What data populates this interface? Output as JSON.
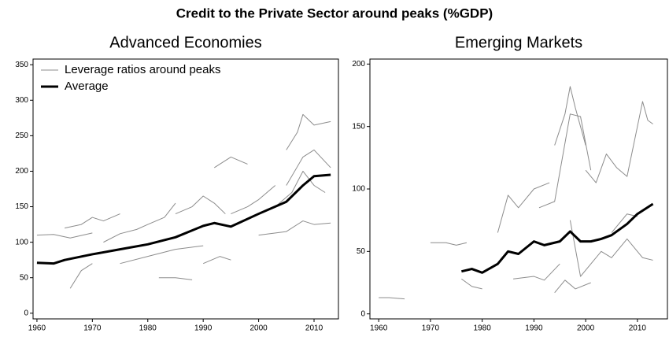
{
  "title": "Credit to the Private Sector around peaks (%GDP)",
  "chart_data": [
    {
      "type": "line",
      "title": "Advanced Economies",
      "xlim": [
        1959.3,
        2014.4
      ],
      "ylim": [
        -8,
        358
      ],
      "xticks": [
        1960,
        1970,
        1980,
        1990,
        2000,
        2010
      ],
      "yticks": [
        0,
        50,
        100,
        150,
        200,
        250,
        300,
        350
      ],
      "legend": "top-left",
      "series": [
        {
          "name": "Leverage ratios around peaks",
          "color": "#8c8c8c",
          "width": 1,
          "lines": [
            {
              "x": [
                1960,
                1963,
                1966,
                1970
              ],
              "values": [
                110,
                111,
                106,
                113
              ]
            },
            {
              "x": [
                1965,
                1968,
                1970,
                1972,
                1975
              ],
              "values": [
                120,
                125,
                135,
                130,
                140
              ]
            },
            {
              "x": [
                1966,
                1968,
                1970
              ],
              "values": [
                35,
                60,
                70
              ]
            },
            {
              "x": [
                1972,
                1975,
                1978,
                1980,
                1983,
                1985
              ],
              "values": [
                100,
                112,
                118,
                125,
                135,
                155
              ]
            },
            {
              "x": [
                1982,
                1985,
                1988
              ],
              "values": [
                50,
                50,
                47
              ]
            },
            {
              "x": [
                1985,
                1988,
                1990,
                1992,
                1994
              ],
              "values": [
                140,
                150,
                165,
                155,
                140
              ]
            },
            {
              "x": [
                1992,
                1995,
                1998
              ],
              "values": [
                205,
                220,
                210
              ]
            },
            {
              "x": [
                1990,
                1993,
                1995
              ],
              "values": [
                70,
                80,
                75
              ]
            },
            {
              "x": [
                1995,
                1998,
                2000,
                2003
              ],
              "values": [
                140,
                150,
                160,
                180
              ]
            },
            {
              "x": [
                2005,
                2007,
                2008,
                2010,
                2013
              ],
              "values": [
                230,
                255,
                280,
                265,
                270
              ]
            },
            {
              "x": [
                2005,
                2008,
                2010,
                2013
              ],
              "values": [
                180,
                220,
                230,
                205
              ]
            },
            {
              "x": [
                2000,
                2005,
                2008,
                2010,
                2013
              ],
              "values": [
                110,
                115,
                130,
                125,
                127
              ]
            },
            {
              "x": [
                1975,
                1980,
                1985,
                1990
              ],
              "values": [
                70,
                80,
                90,
                95
              ]
            },
            {
              "x": [
                2003,
                2006,
                2008,
                2010,
                2012
              ],
              "values": [
                150,
                170,
                200,
                180,
                170
              ]
            }
          ]
        },
        {
          "name": "Average",
          "color": "#000000",
          "width": 3,
          "lines": [
            {
              "x": [
                1960,
                1963,
                1965,
                1970,
                1975,
                1980,
                1985,
                1990,
                1992,
                1995,
                2000,
                2005,
                2008,
                2010,
                2013
              ],
              "values": [
                71,
                70,
                75,
                83,
                90,
                97,
                107,
                123,
                127,
                122,
                140,
                157,
                180,
                193,
                195
              ]
            }
          ]
        }
      ]
    },
    {
      "type": "line",
      "title": "Emerging Markets",
      "xlim": [
        1958.3,
        2015.8
      ],
      "ylim": [
        -4,
        204
      ],
      "xticks": [
        1960,
        1970,
        1980,
        1990,
        2000,
        2010
      ],
      "yticks": [
        0,
        50,
        100,
        150,
        200
      ],
      "series": [
        {
          "color": "#8c8c8c",
          "width": 1,
          "lines": [
            {
              "x": [
                1960,
                1962,
                1965
              ],
              "values": [
                13,
                13,
                12
              ]
            },
            {
              "x": [
                1970,
                1973,
                1975,
                1977
              ],
              "values": [
                57,
                57,
                55,
                57
              ]
            },
            {
              "x": [
                1976,
                1978,
                1980
              ],
              "values": [
                28,
                22,
                20
              ]
            },
            {
              "x": [
                1983,
                1985,
                1987,
                1990,
                1993
              ],
              "values": [
                65,
                95,
                85,
                100,
                105
              ]
            },
            {
              "x": [
                1994,
                1996,
                1997,
                1998,
                2000
              ],
              "values": [
                135,
                160,
                182,
                165,
                135
              ]
            },
            {
              "x": [
                1991,
                1994,
                1997,
                1999,
                2001
              ],
              "values": [
                85,
                90,
                160,
                158,
                115
              ]
            },
            {
              "x": [
                1986,
                1990,
                1992,
                1995
              ],
              "values": [
                28,
                30,
                27,
                40
              ]
            },
            {
              "x": [
                1994,
                1996,
                1998,
                2001
              ],
              "values": [
                17,
                27,
                20,
                25
              ]
            },
            {
              "x": [
                2000,
                2002,
                2004,
                2006,
                2008,
                2010,
                2011,
                2012,
                2013
              ],
              "values": [
                115,
                105,
                128,
                117,
                110,
                150,
                170,
                155,
                152
              ]
            },
            {
              "x": [
                1997,
                1999,
                2001,
                2003,
                2005,
                2008,
                2011,
                2013
              ],
              "values": [
                75,
                30,
                40,
                50,
                45,
                60,
                45,
                43
              ]
            },
            {
              "x": [
                2005,
                2008,
                2010
              ],
              "values": [
                65,
                80,
                78
              ]
            }
          ]
        },
        {
          "color": "#000000",
          "width": 3,
          "lines": [
            {
              "x": [
                1976,
                1978,
                1980,
                1983,
                1985,
                1987,
                1990,
                1992,
                1995,
                1997,
                1999,
                2001,
                2003,
                2005,
                2008,
                2010,
                2013
              ],
              "values": [
                34,
                36,
                33,
                40,
                50,
                48,
                58,
                55,
                58,
                66,
                58,
                58,
                60,
                63,
                72,
                80,
                88
              ]
            }
          ]
        }
      ]
    }
  ]
}
